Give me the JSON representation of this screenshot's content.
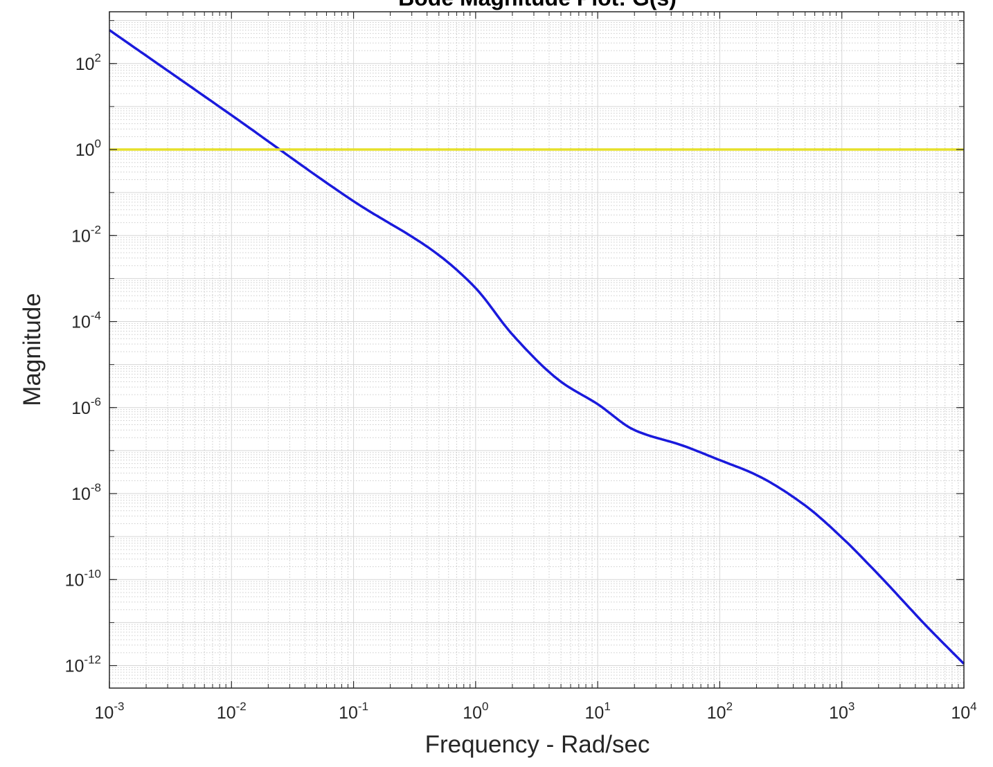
{
  "chart_data": {
    "type": "line",
    "title": "Bode Magnitude Plot: G(s)",
    "xlabel": "Frequency - Rad/sec",
    "ylabel": "Magnitude",
    "x_scale": "log",
    "y_scale": "log",
    "xlim": [
      0.001,
      10000
    ],
    "ylim": [
      3e-13,
      1600
    ],
    "x_ticks": [
      {
        "value": 0.001,
        "base": "10",
        "exp": "-3"
      },
      {
        "value": 0.01,
        "base": "10",
        "exp": "-2"
      },
      {
        "value": 0.1,
        "base": "10",
        "exp": "-1"
      },
      {
        "value": 1,
        "base": "10",
        "exp": "0"
      },
      {
        "value": 10,
        "base": "10",
        "exp": "1"
      },
      {
        "value": 100,
        "base": "10",
        "exp": "2"
      },
      {
        "value": 1000,
        "base": "10",
        "exp": "3"
      },
      {
        "value": 10000,
        "base": "10",
        "exp": "4"
      }
    ],
    "y_ticks": [
      {
        "value": 1e-12,
        "base": "10",
        "exp": "-12"
      },
      {
        "value": 1e-10,
        "base": "10",
        "exp": "-10"
      },
      {
        "value": 1e-08,
        "base": "10",
        "exp": "-8"
      },
      {
        "value": 1e-06,
        "base": "10",
        "exp": "-6"
      },
      {
        "value": 0.0001,
        "base": "10",
        "exp": "-4"
      },
      {
        "value": 0.01,
        "base": "10",
        "exp": "-2"
      },
      {
        "value": 1,
        "base": "10",
        "exp": "0"
      },
      {
        "value": 100,
        "base": "10",
        "exp": "2"
      }
    ],
    "grid": true,
    "minor_grid": true,
    "series": [
      {
        "color": "#1a1adc",
        "x": [
          0.001,
          0.01,
          0.1,
          0.5,
          1,
          2,
          5,
          10,
          20,
          50,
          100,
          200,
          500,
          1000,
          2000,
          5000,
          10000
        ],
        "y": [
          600,
          6.3,
          0.063,
          0.0035,
          0.0006,
          5e-05,
          4e-06,
          1.2e-06,
          3e-07,
          1.3e-07,
          6e-08,
          2.7e-08,
          5.3e-09,
          9.5e-10,
          1.3e-10,
          8e-12,
          1.1e-12
        ]
      },
      {
        "color": "#e6e02a",
        "x": [
          0.001,
          10000
        ],
        "y": [
          1,
          1
        ]
      }
    ]
  }
}
